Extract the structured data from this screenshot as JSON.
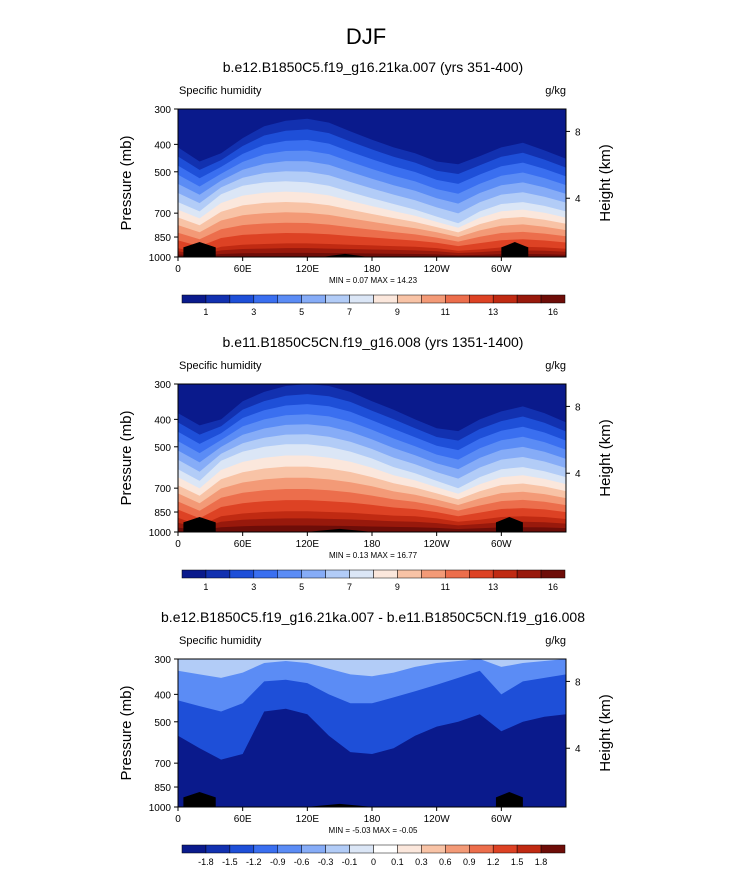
{
  "figure_title": "DJF",
  "palette_abs": [
    "#0a1a8c",
    "#1231b0",
    "#1e4fd8",
    "#3a6ff0",
    "#5b8cf5",
    "#86acf7",
    "#b2ccf7",
    "#dbe6f6",
    "#fbe7dc",
    "#f8c3a6",
    "#f39a77",
    "#ec6e4c",
    "#dd4224",
    "#c02a12",
    "#98190c",
    "#6e0d08"
  ],
  "palette_diff": [
    "#0a1a8c",
    "#1231b0",
    "#1e4fd8",
    "#3a6ff0",
    "#5b8cf5",
    "#86acf7",
    "#b2ccf7",
    "#dbe6f6",
    "#ffffff",
    "#fbe7dc",
    "#f8c3a6",
    "#f39a77",
    "#ec6e4c",
    "#dd4224",
    "#c02a12",
    "#6e0d08"
  ],
  "chart_data": [
    {
      "type": "heatmap",
      "title": "b.e12.B1850C5.f19_g16.21ka.007 (yrs 351-400)",
      "left_label": "Specific humidity",
      "units": "g/kg",
      "ylabel": "Pressure (mb)",
      "ylabel_right": "Height (km)",
      "yticks": [
        "300",
        "400",
        "500",
        "700",
        "850",
        "1000"
      ],
      "yticks_right": [
        "8",
        "4"
      ],
      "xticks": [
        "0",
        "60E",
        "120E",
        "180",
        "120W",
        "60W"
      ],
      "stats": "MIN =   0.07   MAX =  14.23",
      "colorbar_labels": [
        "1",
        "3",
        "5",
        "7",
        "9",
        "11",
        "13",
        "16"
      ],
      "palette": "abs",
      "field": {
        "x_lon": [
          0,
          20,
          40,
          60,
          80,
          100,
          120,
          140,
          160,
          180,
          200,
          220,
          240,
          260,
          280,
          300,
          320,
          340,
          360
        ],
        "contour_top_p": {
          "level_1": [
            410,
            460,
            430,
            380,
            345,
            330,
            325,
            335,
            360,
            385,
            410,
            430,
            460,
            470,
            440,
            410,
            395,
            420,
            450
          ],
          "level_7": [
            640,
            690,
            600,
            560,
            545,
            540,
            545,
            560,
            590,
            620,
            650,
            680,
            720,
            760,
            690,
            650,
            640,
            660,
            690
          ],
          "level_13": [
            930,
            970,
            920,
            905,
            900,
            895,
            895,
            900,
            905,
            910,
            915,
            920,
            930,
            950,
            940,
            925,
            920,
            925,
            935
          ]
        },
        "terrain_lon": [
          [
            5,
            35
          ],
          [
            120,
            190
          ],
          [
            300,
            325
          ]
        ]
      }
    },
    {
      "type": "heatmap",
      "title": "b.e11.B1850C5CN.f19_g16.008 (yrs 1351-1400)",
      "left_label": "Specific humidity",
      "units": "g/kg",
      "ylabel": "Pressure (mb)",
      "ylabel_right": "Height (km)",
      "yticks": [
        "300",
        "400",
        "500",
        "700",
        "850",
        "1000"
      ],
      "yticks_right": [
        "8",
        "4"
      ],
      "xticks": [
        "0",
        "60E",
        "120E",
        "180",
        "120W",
        "60W"
      ],
      "stats": "MIN =   0.13   MAX =  16.77",
      "colorbar_labels": [
        "1",
        "3",
        "5",
        "7",
        "9",
        "11",
        "13",
        "16"
      ],
      "palette": "abs",
      "field": {
        "x_lon": [
          0,
          20,
          40,
          60,
          80,
          100,
          120,
          140,
          160,
          180,
          200,
          220,
          240,
          260,
          280,
          300,
          320,
          340,
          360
        ],
        "contour_top_p": {
          "level_1": [
            380,
            420,
            400,
            345,
            320,
            305,
            300,
            305,
            320,
            345,
            370,
            400,
            430,
            440,
            400,
            375,
            360,
            380,
            410
          ],
          "level_7": [
            600,
            660,
            560,
            520,
            500,
            490,
            490,
            500,
            520,
            550,
            590,
            620,
            660,
            700,
            640,
            600,
            590,
            610,
            640
          ],
          "level_13": [
            890,
            950,
            880,
            860,
            850,
            845,
            845,
            850,
            855,
            865,
            875,
            880,
            895,
            920,
            905,
            885,
            880,
            885,
            900
          ]
        },
        "terrain_lon": [
          [
            5,
            35
          ],
          [
            100,
            200
          ],
          [
            295,
            320
          ]
        ]
      }
    },
    {
      "type": "heatmap",
      "title": "b.e12.B1850C5.f19_g16.21ka.007 - b.e11.B1850C5CN.f19_g16.008",
      "left_label": "Specific humidity",
      "units": "g/kg",
      "ylabel": "Pressure (mb)",
      "ylabel_right": "Height (km)",
      "yticks": [
        "300",
        "400",
        "500",
        "700",
        "850",
        "1000"
      ],
      "yticks_right": [
        "8",
        "4"
      ],
      "xticks": [
        "0",
        "60E",
        "120E",
        "180",
        "120W",
        "60W"
      ],
      "stats": "MIN =  -5.03   MAX =  -0.05",
      "colorbar_labels": [
        "-1.8",
        "-1.5",
        "-1.2",
        "-0.9",
        "-0.6",
        "-0.3",
        "-0.1",
        "0",
        "0.1",
        "0.3",
        "0.6",
        "0.9",
        "1.2",
        "1.5",
        "1.8"
      ],
      "palette": "diff",
      "field": {
        "x_lon": [
          0,
          20,
          40,
          60,
          80,
          100,
          120,
          140,
          160,
          180,
          200,
          220,
          240,
          260,
          280,
          300,
          320,
          340,
          360
        ],
        "contour_top_p": {
          "level_1": [
            560,
            620,
            680,
            650,
            460,
            450,
            470,
            560,
            640,
            650,
            620,
            560,
            520,
            500,
            470,
            540,
            500,
            480,
            470
          ],
          "level_7": [
            420,
            440,
            460,
            430,
            360,
            355,
            365,
            400,
            430,
            430,
            410,
            390,
            370,
            350,
            330,
            400,
            360,
            350,
            340
          ],
          "level_13": [
            330,
            340,
            350,
            335,
            310,
            305,
            310,
            325,
            340,
            345,
            335,
            320,
            310,
            305,
            300,
            320,
            310,
            305,
            300
          ]
        },
        "terrain_lon": [
          [
            5,
            35
          ],
          [
            100,
            200
          ],
          [
            295,
            320
          ]
        ]
      }
    }
  ]
}
